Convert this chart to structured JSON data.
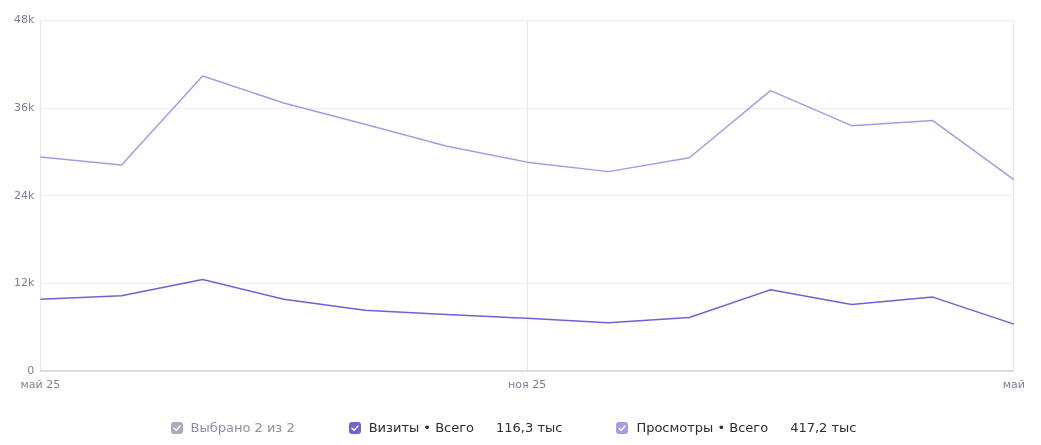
{
  "chart_data": {
    "type": "line",
    "categories": [
      "май 25",
      null,
      null,
      null,
      null,
      null,
      "ноя 25",
      null,
      null,
      null,
      null,
      null,
      "май"
    ],
    "series": [
      {
        "name": "Визиты • Всего",
        "color": "#6e62d6",
        "values": [
          9.8,
          10.3,
          12.5,
          9.8,
          8.3,
          7.7,
          7.2,
          6.6,
          7.3,
          11.1,
          9.1,
          10.1,
          6.4
        ]
      },
      {
        "name": "Просмотры • Всего",
        "color": "#a59ce6",
        "values": [
          29.3,
          28.2,
          40.4,
          36.7,
          33.8,
          30.8,
          28.6,
          27.3,
          29.2,
          38.4,
          33.6,
          34.3,
          26.2
        ]
      }
    ],
    "ylim": [
      0,
      48
    ],
    "yticks": [
      {
        "value": 0,
        "label": "0"
      },
      {
        "value": 12,
        "label": "12k"
      },
      {
        "value": 24,
        "label": "24k"
      },
      {
        "value": 36,
        "label": "36k"
      },
      {
        "value": 48,
        "label": "48k"
      }
    ],
    "annotations": [
      "Выбрано 2 из 2",
      "116,3 тыс",
      "417,2 тыс"
    ],
    "grid": true,
    "legend": "bottom",
    "marker": "none",
    "line_style": "solid"
  }
}
